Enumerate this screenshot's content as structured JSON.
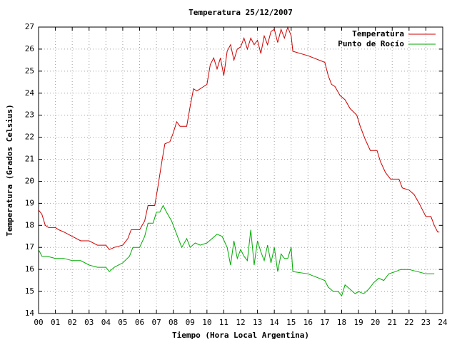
{
  "chart_data": {
    "type": "line",
    "title": "Temperatura 25/12/2007",
    "x_label": "Tiempo (Hora Local Argentina)",
    "y_label": "Temperatura (Grados Celsius)",
    "xlim": [
      0,
      24
    ],
    "ylim": [
      14,
      27
    ],
    "xticks": [
      {
        "value": 0,
        "label": "00"
      },
      {
        "value": 1,
        "label": "01"
      },
      {
        "value": 2,
        "label": "02"
      },
      {
        "value": 3,
        "label": "03"
      },
      {
        "value": 4,
        "label": "04"
      },
      {
        "value": 5,
        "label": "05"
      },
      {
        "value": 6,
        "label": "06"
      },
      {
        "value": 7,
        "label": "07"
      },
      {
        "value": 8,
        "label": "08"
      },
      {
        "value": 9,
        "label": "09"
      },
      10,
      11,
      12,
      13,
      14,
      15,
      16,
      17,
      18,
      19,
      20,
      21,
      22,
      23,
      24
    ],
    "yticks": [
      14,
      15,
      16,
      17,
      18,
      19,
      20,
      21,
      22,
      23,
      24,
      25,
      26,
      27
    ],
    "grid": true,
    "legend": "top-right",
    "series": [
      {
        "name": "Temperatura",
        "color": "#cc0000",
        "x": [
          0.0,
          0.2,
          0.4,
          0.6,
          1.0,
          1.2,
          1.5,
          2.0,
          2.5,
          3.0,
          3.5,
          4.0,
          4.2,
          4.5,
          5.0,
          5.3,
          5.5,
          6.0,
          6.3,
          6.5,
          6.9,
          7.1,
          7.3,
          7.5,
          7.8,
          8.0,
          8.2,
          8.4,
          8.8,
          9.0,
          9.2,
          9.4,
          9.8,
          10.0,
          10.2,
          10.4,
          10.6,
          10.8,
          11.0,
          11.2,
          11.4,
          11.6,
          11.8,
          12.0,
          12.2,
          12.4,
          12.6,
          12.8,
          13.0,
          13.2,
          13.4,
          13.6,
          13.8,
          14.0,
          14.2,
          14.4,
          14.6,
          14.8,
          15.0,
          15.1,
          16.0,
          17.0,
          17.2,
          17.4,
          17.6,
          17.9,
          18.2,
          18.5,
          18.9,
          19.1,
          19.4,
          19.7,
          20.1,
          20.3,
          20.6,
          20.9,
          21.4,
          21.6,
          22.0,
          22.3,
          22.6,
          22.8,
          23.0,
          23.3,
          23.5,
          23.7,
          23.8
        ],
        "values": [
          18.7,
          18.5,
          18.0,
          17.9,
          17.9,
          17.8,
          17.7,
          17.5,
          17.3,
          17.3,
          17.1,
          17.1,
          16.9,
          17.0,
          17.1,
          17.4,
          17.8,
          17.8,
          18.2,
          18.9,
          18.9,
          19.8,
          20.8,
          21.7,
          21.8,
          22.2,
          22.7,
          22.5,
          22.5,
          23.4,
          24.2,
          24.1,
          24.3,
          24.4,
          25.3,
          25.6,
          25.1,
          25.6,
          24.8,
          25.9,
          26.2,
          25.5,
          26.0,
          26.1,
          26.5,
          26.0,
          26.5,
          26.2,
          26.4,
          25.8,
          26.6,
          26.2,
          26.8,
          26.9,
          26.3,
          26.9,
          26.5,
          27.0,
          26.6,
          25.9,
          25.7,
          25.4,
          24.8,
          24.4,
          24.3,
          23.9,
          23.7,
          23.3,
          23.0,
          22.5,
          21.9,
          21.4,
          21.4,
          20.9,
          20.4,
          20.1,
          20.1,
          19.7,
          19.6,
          19.4,
          19.0,
          18.7,
          18.4,
          18.4,
          18.0,
          17.7,
          17.7
        ]
      },
      {
        "name": "Punto de Rocío",
        "color": "#00aa00",
        "x": [
          0.0,
          0.2,
          0.5,
          1.0,
          1.5,
          2.0,
          2.5,
          3.0,
          3.5,
          4.0,
          4.2,
          4.5,
          5.0,
          5.4,
          5.6,
          6.0,
          6.3,
          6.5,
          6.8,
          7.0,
          7.2,
          7.4,
          7.6,
          7.9,
          8.2,
          8.5,
          8.8,
          9.0,
          9.3,
          9.6,
          10.0,
          10.3,
          10.6,
          10.9,
          11.2,
          11.4,
          11.6,
          11.8,
          12.0,
          12.2,
          12.4,
          12.6,
          12.8,
          13.0,
          13.2,
          13.4,
          13.6,
          13.8,
          14.0,
          14.2,
          14.4,
          14.6,
          14.8,
          15.0,
          15.1,
          16.0,
          17.0,
          17.2,
          17.5,
          17.8,
          18.0,
          18.2,
          18.5,
          18.8,
          19.0,
          19.3,
          19.6,
          19.9,
          20.2,
          20.5,
          20.8,
          21.2,
          21.5,
          22.0,
          22.5,
          23.0,
          23.5
        ],
        "values": [
          16.9,
          16.6,
          16.6,
          16.5,
          16.5,
          16.4,
          16.4,
          16.2,
          16.1,
          16.1,
          15.9,
          16.1,
          16.3,
          16.6,
          17.0,
          17.0,
          17.5,
          18.1,
          18.1,
          18.6,
          18.6,
          18.9,
          18.6,
          18.2,
          17.6,
          17.0,
          17.4,
          17.0,
          17.2,
          17.1,
          17.2,
          17.4,
          17.6,
          17.5,
          17.0,
          16.2,
          17.3,
          16.5,
          16.9,
          16.6,
          16.4,
          17.8,
          16.2,
          17.3,
          16.8,
          16.4,
          17.1,
          16.3,
          17.0,
          15.9,
          16.7,
          16.5,
          16.5,
          17.0,
          15.9,
          15.8,
          15.5,
          15.2,
          15.0,
          15.0,
          14.8,
          15.3,
          15.1,
          14.9,
          15.0,
          14.9,
          15.1,
          15.4,
          15.6,
          15.5,
          15.8,
          15.9,
          16.0,
          16.0,
          15.9,
          15.8,
          15.8
        ]
      }
    ]
  }
}
